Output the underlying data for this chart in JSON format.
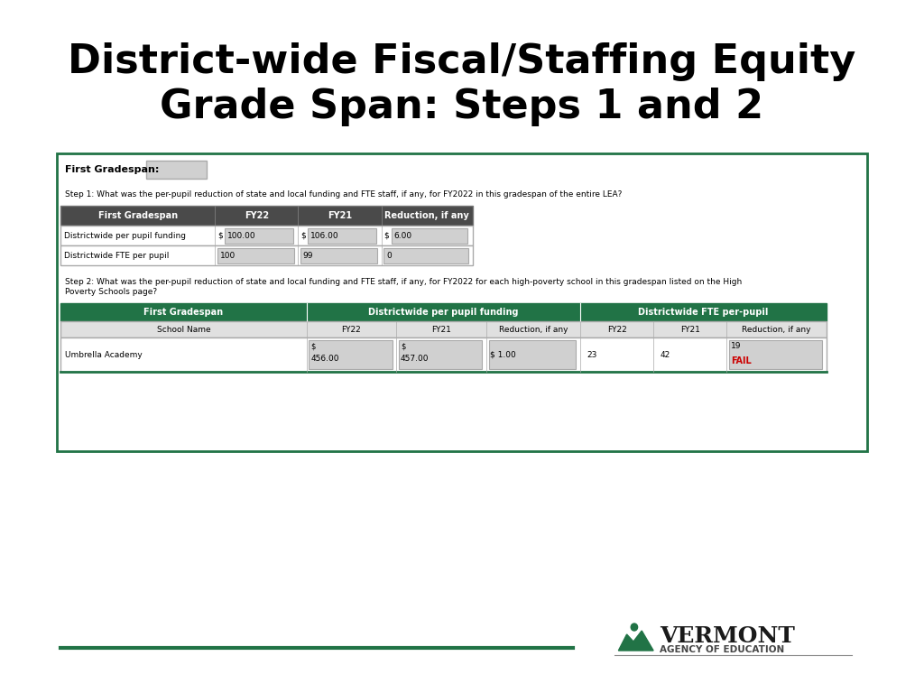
{
  "title_line1": "District-wide Fiscal/Staffing Equity",
  "title_line2": "Grade Span: Steps 1 and 2",
  "title_fontsize": 32,
  "title_color": "#000000",
  "bg_color": "#ffffff",
  "green_header": "#217346",
  "green_border": "#217346",
  "input_box_color": "#d0d0d0",
  "gradespan_label": "First Gradespan:",
  "step1_text": "Step 1: What was the per-pupil reduction of state and local funding and FTE staff, if any, for FY2022 in this gradespan of the entire LEA?",
  "step1_headers": [
    "First Gradespan",
    "FY22",
    "FY21",
    "Reduction, if any"
  ],
  "step1_row1_label": "Districtwide per pupil funding",
  "step1_row1_fy22_dollar": "$",
  "step1_row1_fy22_val": "100.00",
  "step1_row1_fy21_dollar": "$",
  "step1_row1_fy21_val": "106.00",
  "step1_row1_red_dollar": "$",
  "step1_row1_red_val": "6.00",
  "step1_row2_label": "Districtwide FTE per pupil",
  "step1_row2_fy22": "100",
  "step1_row2_fy21": "99",
  "step1_row2_red": "0",
  "step2_text1": "Step 2: What was the per-pupil reduction of state and local funding and FTE staff, if any, for FY2022 for each high-poverty school in this gradespan listed on the High",
  "step2_text2": "Poverty Schools page?",
  "step2_headers_col1": "First Gradespan",
  "step2_headers_col2": "Districtwide per pupil funding",
  "step2_headers_col3": "Districtwide FTE per-pupil",
  "step2_subheaders": [
    "School Name",
    "FY22",
    "FY21",
    "Reduction, if any",
    "FY22",
    "FY21",
    "Reduction, if any"
  ],
  "school_name": "Umbrella Academy",
  "school_fy22_fund_val": "456.00",
  "school_fy21_fund_val": "457.00",
  "school_red_fund_val": "1.00",
  "school_fy22_fte": "23",
  "school_fy21_fte": "42",
  "school_red_fte": "19",
  "fail_text": "FAIL",
  "fail_color": "#cc0000",
  "footer_line_color": "#217346",
  "vermont_text": "VERMONT",
  "agency_text": "AGENCY OF EDUCATION"
}
